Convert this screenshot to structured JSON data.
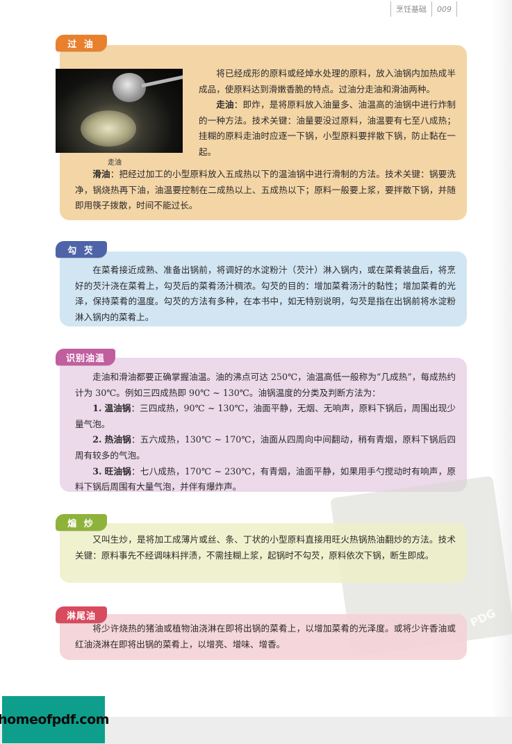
{
  "header": {
    "chapter": "烹饪基础",
    "page_number": "009"
  },
  "sections": [
    {
      "tag": "过 油",
      "color": "#f4d5a6",
      "tag_color": "#e8802d",
      "photo_caption": "走油",
      "paragraphs": [
        {
          "text": "将已经成形的原料或经焯水处理的原料，放入油锅内加热成半成品，使原料达到滑嫩香脆的特点。过油分走油和滑油两种。"
        },
        {
          "term": "走油",
          "text": "：即炸，是将原料放入油量多、油温高的油锅中进行炸制的一种方法。技术关键：油量要没过原料，油温要有七至八成热；挂糊的原料走油时应逐一下锅，小型原料要拌散下锅，防止黏在一起。"
        },
        {
          "term": "滑油",
          "text": "：把经过加工的小型原料放入五成热以下的温油锅中进行滑制的方法。技术关键：锅要洗净，锅烧热再下油，油温要控制在二成热以上、五成热以下；原料一般要上浆，要拌散下锅，并随即用筷子拨散，时间不能过长。"
        }
      ]
    },
    {
      "tag": "勾 芡",
      "color": "#d2e5f3",
      "tag_color": "#4e63a8",
      "paragraphs": [
        {
          "text": "在菜肴接近成熟、准备出锅前，将调好的水淀粉汁（芡汁）淋入锅内，或在菜肴装盘后，将烹好的芡汁浇在菜肴上，勾芡后的菜肴汤汁稠浓。勾芡的目的：增加菜肴汤汁的黏性；增加菜肴的光泽，保持菜肴的温度。勾芡的方法有多种，在本书中，如无特别说明，勾芡是指在出锅前将水淀粉淋入锅内的菜肴上。"
        }
      ]
    },
    {
      "tag": "识别油温",
      "color": "#ecd9ea",
      "tag_color": "#c15ea0",
      "paragraphs": [
        {
          "text": "走油和滑油都要正确掌握油温。油的沸点可达 250℃，油温高低一般称为“几成热”，每成热约计为 30℃。例如三四成热即 90℃ ~ 130℃。油锅温度的分类及判断方法为："
        },
        {
          "num": "1.",
          "term": "温油锅",
          "text": "：三四成热，90℃ ~ 130℃，油面平静，无烟、无响声，原料下锅后，周围出现少量气泡。"
        },
        {
          "num": "2.",
          "term": "热油锅",
          "text": "：五六成热，130℃ ~ 170℃，油面从四周向中间翻动，稍有青烟，原料下锅后四周有较多的气泡。"
        },
        {
          "num": "3.",
          "term": "旺油锅",
          "text": "：七八成热，170℃ ~ 230℃，有青烟，油面平静，如果用手勺搅动时有响声，原料下锅后周围有大量气泡，并伴有爆炸声。"
        }
      ]
    },
    {
      "tag": "煸 炒",
      "color": "#edf0c7",
      "tag_color": "#8fb23a",
      "paragraphs": [
        {
          "text": "又叫生炒，是将加工成薄片或丝、条、丁状的小型原料直接用旺火热锅热油翻炒的方法。技术关键：原料事先不经调味料拌渍，不需挂糊上浆，起锅时不勾芡，原料依次下锅，断生即成。"
        }
      ]
    },
    {
      "tag": "淋尾油",
      "color": "#f4d1d6",
      "tag_color": "#d84a5e",
      "paragraphs": [
        {
          "text": "将少许烧热的猪油或植物油浇淋在即将出锅的菜肴上，以增加菜肴的光泽度。或将少许香油或红油浇淋在即将出锅的菜肴上，以增亮、增味、增香。"
        }
      ]
    }
  ],
  "watermark": {
    "text": "PDG"
  },
  "logo": {
    "text": "homeofpdf.com"
  }
}
